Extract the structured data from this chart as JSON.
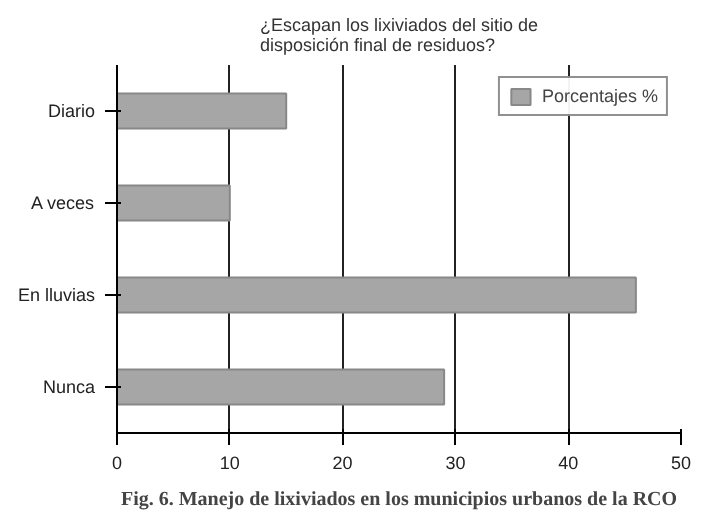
{
  "chart_data": {
    "type": "bar",
    "orientation": "horizontal",
    "title": "¿Escapan los lixiviados del sitio de\ndisposición final de residuos?",
    "categories": [
      "Diario",
      "A veces",
      "En lluvias",
      "Nunca"
    ],
    "series": [
      {
        "name": "Porcentajes %",
        "color": "#a6a6a6",
        "values": [
          15,
          10,
          46,
          29
        ]
      }
    ],
    "xlim": [
      0,
      50
    ],
    "xticks": [
      0,
      10,
      20,
      30,
      40,
      50
    ],
    "grid": "x",
    "legend": "top right",
    "annotations": [
      "Fig. 6. Manejo de lixiviados en los municipios urbanos de la RCO"
    ]
  }
}
